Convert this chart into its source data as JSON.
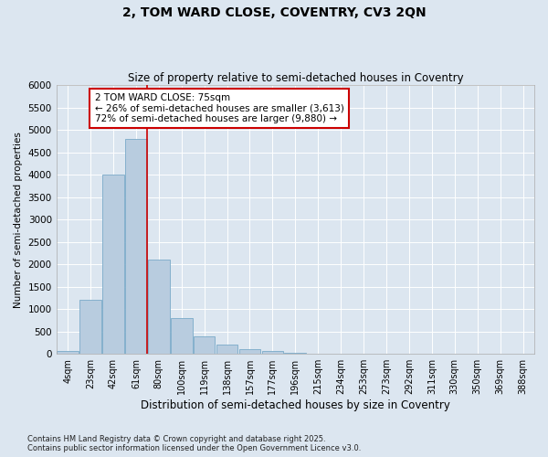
{
  "title": "2, TOM WARD CLOSE, COVENTRY, CV3 2QN",
  "subtitle": "Size of property relative to semi-detached houses in Coventry",
  "xlabel": "Distribution of semi-detached houses by size in Coventry",
  "ylabel": "Number of semi-detached properties",
  "categories": [
    "4sqm",
    "23sqm",
    "42sqm",
    "61sqm",
    "80sqm",
    "100sqm",
    "119sqm",
    "138sqm",
    "157sqm",
    "177sqm",
    "196sqm",
    "215sqm",
    "234sqm",
    "253sqm",
    "273sqm",
    "292sqm",
    "311sqm",
    "330sqm",
    "350sqm",
    "369sqm",
    "388sqm"
  ],
  "values": [
    60,
    1200,
    4000,
    4800,
    2100,
    800,
    400,
    200,
    100,
    60,
    30,
    10,
    0,
    0,
    0,
    0,
    0,
    0,
    0,
    0,
    0
  ],
  "bar_color": "#b8ccdf",
  "bar_edge_color": "#7aaac8",
  "bg_color": "#dce6f0",
  "grid_color": "#ffffff",
  "annotation_box_text": "2 TOM WARD CLOSE: 75sqm\n← 26% of semi-detached houses are smaller (3,613)\n72% of semi-detached houses are larger (9,880) →",
  "annotation_box_color": "#ffffff",
  "annotation_box_edge_color": "#cc0000",
  "property_line_color": "#cc0000",
  "property_line_x": 3.5,
  "ylim": [
    0,
    6000
  ],
  "yticks": [
    0,
    500,
    1000,
    1500,
    2000,
    2500,
    3000,
    3500,
    4000,
    4500,
    5000,
    5500,
    6000
  ],
  "footer_line1": "Contains HM Land Registry data © Crown copyright and database right 2025.",
  "footer_line2": "Contains public sector information licensed under the Open Government Licence v3.0."
}
